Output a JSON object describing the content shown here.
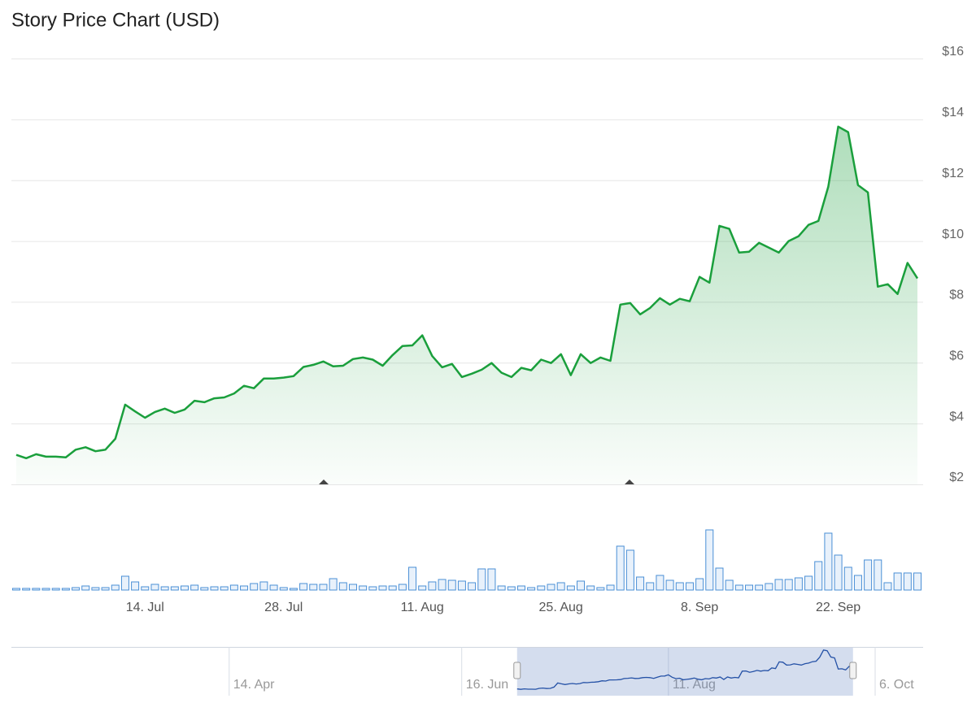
{
  "chart_data": {
    "type": "line",
    "title": "Story Price Chart (USD)",
    "x": [
      "07-01",
      "07-02",
      "07-03",
      "07-04",
      "07-05",
      "07-06",
      "07-07",
      "07-08",
      "07-09",
      "07-10",
      "07-11",
      "07-12",
      "07-13",
      "07-14",
      "07-15",
      "07-16",
      "07-17",
      "07-18",
      "07-19",
      "07-20",
      "07-21",
      "07-22",
      "07-23",
      "07-24",
      "07-25",
      "07-26",
      "07-27",
      "07-28",
      "07-29",
      "07-30",
      "07-31",
      "08-01",
      "08-02",
      "08-03",
      "08-04",
      "08-05",
      "08-06",
      "08-07",
      "08-08",
      "08-09",
      "08-10",
      "08-11",
      "08-12",
      "08-13",
      "08-14",
      "08-15",
      "08-16",
      "08-17",
      "08-18",
      "08-19",
      "08-20",
      "08-21",
      "08-22",
      "08-23",
      "08-24",
      "08-25",
      "08-26",
      "08-27",
      "08-28",
      "08-29",
      "08-30",
      "08-31",
      "09-01",
      "09-02",
      "09-03",
      "09-04",
      "09-05",
      "09-06",
      "09-07",
      "09-08",
      "09-09",
      "09-10",
      "09-11",
      "09-12",
      "09-13",
      "09-14",
      "09-15",
      "09-16",
      "09-17",
      "09-18",
      "09-19",
      "09-20",
      "09-21",
      "09-22",
      "09-23",
      "09-24",
      "09-25",
      "09-26",
      "09-27",
      "09-28",
      "09-29",
      "09-30"
    ],
    "xlim": [
      "07-01",
      "09-30"
    ],
    "xticks": [
      {
        "value": "07-14",
        "label": "14. Jul"
      },
      {
        "value": "07-28",
        "label": "28. Jul"
      },
      {
        "value": "08-11",
        "label": "11. Aug"
      },
      {
        "value": "08-25",
        "label": "25. Aug"
      },
      {
        "value": "09-08",
        "label": "8. Sep"
      },
      {
        "value": "09-22",
        "label": "22. Sep"
      }
    ],
    "ylim": [
      2,
      16
    ],
    "yticks": [
      {
        "value": 2,
        "label": "$2"
      },
      {
        "value": 4,
        "label": "$4"
      },
      {
        "value": 6,
        "label": "$6"
      },
      {
        "value": 8,
        "label": "$8"
      },
      {
        "value": 10,
        "label": "$10"
      },
      {
        "value": 12,
        "label": "$12"
      },
      {
        "value": 14,
        "label": "$14"
      },
      {
        "value": 16,
        "label": "$16"
      }
    ],
    "grid": true,
    "series": [
      {
        "color": "#1a9f3c",
        "values": [
          2.97,
          2.86,
          2.99,
          2.91,
          2.91,
          2.89,
          3.14,
          3.22,
          3.09,
          3.14,
          3.5,
          4.62,
          4.4,
          4.19,
          4.38,
          4.49,
          4.35,
          4.46,
          4.75,
          4.7,
          4.83,
          4.86,
          4.99,
          5.24,
          5.16,
          5.48,
          5.48,
          5.51,
          5.56,
          5.86,
          5.93,
          6.04,
          5.88,
          5.9,
          6.12,
          6.17,
          6.1,
          5.9,
          6.25,
          6.55,
          6.57,
          6.9,
          6.22,
          5.85,
          5.96,
          5.53,
          5.64,
          5.77,
          5.99,
          5.67,
          5.53,
          5.83,
          5.75,
          6.1,
          5.99,
          6.28,
          5.59,
          6.28,
          5.99,
          6.17,
          6.06,
          7.91,
          7.96,
          7.59,
          7.8,
          8.12,
          7.91,
          8.1,
          8.02,
          8.82,
          8.63,
          10.5,
          10.4,
          9.62,
          9.65,
          9.94,
          9.78,
          9.62,
          10.0,
          10.16,
          10.53,
          10.66,
          11.79,
          13.76,
          13.58,
          11.84,
          11.6,
          8.5,
          8.58,
          8.26,
          9.28,
          8.77
        ]
      }
    ],
    "volume": {
      "color": "#4a8fd6",
      "values": [
        2,
        2,
        2,
        2,
        2,
        2,
        3,
        5,
        3,
        3,
        6,
        17,
        10,
        4,
        7,
        4,
        4,
        5,
        6,
        3,
        4,
        4,
        6,
        5,
        8,
        10,
        6,
        3,
        2,
        8,
        7,
        7,
        14,
        9,
        7,
        5,
        4,
        5,
        5,
        7,
        28,
        5,
        10,
        13,
        12,
        11,
        9,
        26,
        26,
        5,
        4,
        5,
        3,
        5,
        7,
        9,
        5,
        11,
        5,
        3,
        6,
        54,
        49,
        16,
        9,
        18,
        12,
        9,
        9,
        14,
        74,
        27,
        12,
        6,
        6,
        6,
        8,
        13,
        13,
        15,
        17,
        35,
        70,
        43,
        28,
        18,
        37,
        37,
        9,
        21,
        21,
        21
      ]
    },
    "navigator": {
      "xlim": [
        "02-14",
        "10-19"
      ],
      "xticks": [
        {
          "value": "04-14",
          "label": "14. Apr"
        },
        {
          "value": "06-16",
          "label": "16. Jun"
        },
        {
          "value": "08-11",
          "label": "11. Aug"
        },
        {
          "value": "10-06",
          "label": "6. Oct"
        }
      ]
    }
  }
}
